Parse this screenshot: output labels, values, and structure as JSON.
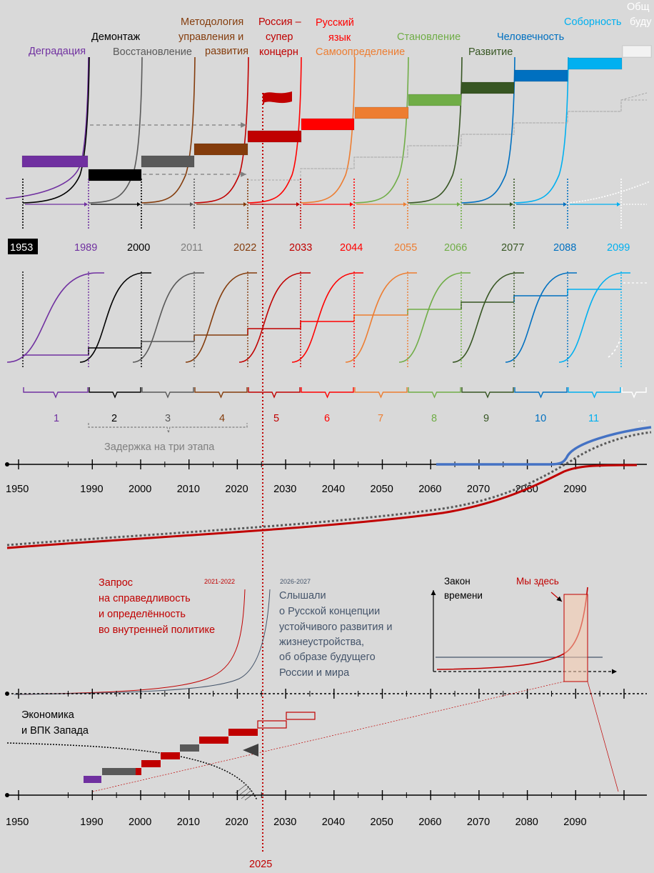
{
  "stages": [
    {
      "name": "Деградация",
      "year": "1953",
      "num": "1",
      "color": "#7030a0"
    },
    {
      "name": "Демонтаж",
      "year": "1989",
      "num": "2",
      "color": "#000000"
    },
    {
      "name": "Восстановление",
      "year": "2000",
      "num": "3",
      "color": "#595959"
    },
    {
      "name": "Методология управления и развития",
      "year": "2011",
      "num": "4",
      "color": "#843c0c"
    },
    {
      "name": "Россия – супер концерн",
      "year": "2022",
      "num": "5",
      "color": "#c00000"
    },
    {
      "name": "Русский язык",
      "year": "2033",
      "num": "6",
      "color": "#ff0000"
    },
    {
      "name": "Самоопределение",
      "year": "2044",
      "num": "7",
      "color": "#ed7d31"
    },
    {
      "name": "Становление",
      "year": "2055",
      "num": "8",
      "color": "#70ad47"
    },
    {
      "name": "Развитие",
      "year": "2066",
      "num": "9",
      "color": "#375623"
    },
    {
      "name": "Человечность",
      "year": "2077",
      "num": "10",
      "color": "#0070c0"
    },
    {
      "name": "Соборность",
      "year": "2088",
      "num": "11",
      "color": "#00b0f0"
    },
    {
      "name": "Общ",
      "year": "2099",
      "num": "...",
      "color": "#ffffff"
    }
  ],
  "top_labels": {
    "degradation": "Деградация",
    "dismantling": "Демонтаж",
    "restoration": "Восстановление",
    "methodology_1": "Методология",
    "methodology_2": "управления и",
    "methodology_3": "развития",
    "russia_1": "Россия –",
    "russia_2": "супер",
    "russia_3": "концерн",
    "language_1": "Русский",
    "language_2": "язык",
    "selfdetermination": "Самоопределение",
    "formation": "Становление",
    "development": "Развитие",
    "humanity": "Человечность",
    "sobornost": "Соборность",
    "future_1": "Общ",
    "future_2": "буду"
  },
  "delay_label": "Задержка на три этапа",
  "timeline_years": [
    "1950",
    "1990",
    "2000",
    "2010",
    "2020",
    "2030",
    "2040",
    "2050",
    "2060",
    "2070",
    "2080",
    "2090"
  ],
  "current_year": "2025",
  "lower": {
    "request_1": "Запрос",
    "request_2": "на справедливость",
    "request_3": "и определённость",
    "request_4": "во внутренней политике",
    "request_years": "2021-2022",
    "heard_years": "2026-2027",
    "heard_1": "Слышали",
    "heard_2": "о Русской концепции",
    "heard_3": "устойчивого развития и",
    "heard_4": "жизнеустройства,",
    "heard_5": "об образе будущего",
    "heard_6": "России и мира",
    "law_1": "Закон",
    "law_2": "времени",
    "we_are_here": "Мы здесь",
    "west_1": "Экономика",
    "west_2": "и ВПК Запада"
  },
  "colors": {
    "background": "#d9d9d9",
    "red_line": "#c00000",
    "blue_curve": "#4472c4",
    "dotted_curve": "#595959"
  }
}
